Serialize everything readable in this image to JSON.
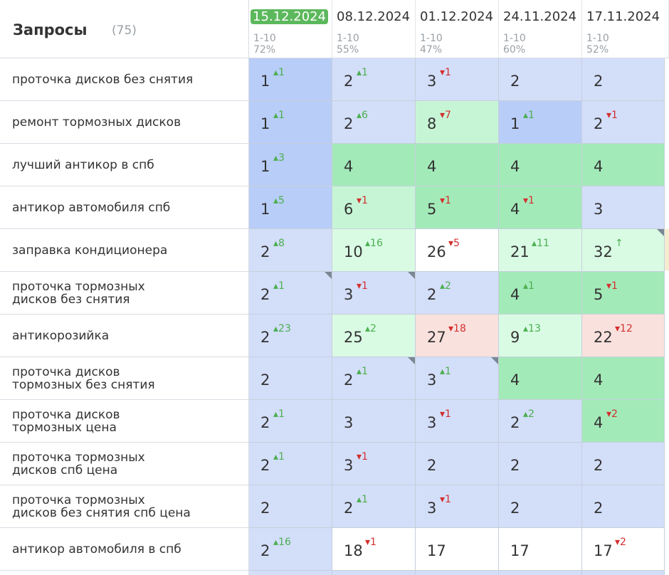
{
  "header": {
    "title": "Запросы",
    "count": "(75)"
  },
  "colors": {
    "active_date": "#5cb85c",
    "up": "#4caf50",
    "down": "#d32f2f"
  },
  "dates": [
    {
      "date": "15.12.2024",
      "range": "1-10",
      "percent": "72%",
      "active": true
    },
    {
      "date": "08.12.2024",
      "range": "1-10",
      "percent": "55%",
      "active": false
    },
    {
      "date": "01.12.2024",
      "range": "1-10",
      "percent": "47%",
      "active": false
    },
    {
      "date": "24.11.2024",
      "range": "1-10",
      "percent": "60%",
      "active": false
    },
    {
      "date": "17.11.2024",
      "range": "1-10",
      "percent": "52%",
      "active": false
    }
  ],
  "rows": [
    {
      "query": "проточка дисков без снятия",
      "cells": [
        {
          "pos": "1",
          "change": "1",
          "dir": "up",
          "color": "blue1"
        },
        {
          "pos": "2",
          "change": "1",
          "dir": "up",
          "color": "blue2"
        },
        {
          "pos": "3",
          "change": "1",
          "dir": "down",
          "color": "blue2"
        },
        {
          "pos": "2",
          "change": "",
          "dir": "",
          "color": "blue2"
        },
        {
          "pos": "2",
          "change": "",
          "dir": "",
          "color": "blue2"
        }
      ]
    },
    {
      "query": "ремонт тормозных дисков",
      "cells": [
        {
          "pos": "1",
          "change": "1",
          "dir": "up",
          "color": "blue1"
        },
        {
          "pos": "2",
          "change": "6",
          "dir": "up",
          "color": "blue2"
        },
        {
          "pos": "8",
          "change": "7",
          "dir": "down",
          "color": "green2"
        },
        {
          "pos": "1",
          "change": "1",
          "dir": "up",
          "color": "blue1"
        },
        {
          "pos": "2",
          "change": "1",
          "dir": "down",
          "color": "blue2"
        }
      ]
    },
    {
      "query": "лучший антикор в спб",
      "cells": [
        {
          "pos": "1",
          "change": "3",
          "dir": "up",
          "color": "blue1"
        },
        {
          "pos": "4",
          "change": "",
          "dir": "",
          "color": "green1"
        },
        {
          "pos": "4",
          "change": "",
          "dir": "",
          "color": "green1"
        },
        {
          "pos": "4",
          "change": "",
          "dir": "",
          "color": "green1"
        },
        {
          "pos": "4",
          "change": "",
          "dir": "",
          "color": "green1"
        }
      ]
    },
    {
      "query": "антикор автомобиля спб",
      "cells": [
        {
          "pos": "1",
          "change": "5",
          "dir": "up",
          "color": "blue1"
        },
        {
          "pos": "6",
          "change": "1",
          "dir": "down",
          "color": "green2"
        },
        {
          "pos": "5",
          "change": "1",
          "dir": "down",
          "color": "green1"
        },
        {
          "pos": "4",
          "change": "1",
          "dir": "down",
          "color": "green1"
        },
        {
          "pos": "3",
          "change": "",
          "dir": "",
          "color": "blue2"
        }
      ]
    },
    {
      "query": "заправка кондиционера",
      "cells": [
        {
          "pos": "2",
          "change": "8",
          "dir": "up",
          "color": "blue2"
        },
        {
          "pos": "10",
          "change": "16",
          "dir": "up",
          "color": "green3"
        },
        {
          "pos": "26",
          "change": "5",
          "dir": "down",
          "color": "white"
        },
        {
          "pos": "21",
          "change": "11",
          "dir": "up",
          "color": "green3"
        },
        {
          "pos": "32",
          "change": "↑",
          "dir": "arrow",
          "color": "green3",
          "flag": true
        }
      ]
    },
    {
      "query": "проточка тормозных\nдисков без снятия",
      "cells": [
        {
          "pos": "2",
          "change": "1",
          "dir": "up",
          "color": "blue2",
          "flag": true
        },
        {
          "pos": "3",
          "change": "1",
          "dir": "down",
          "color": "blue2",
          "flag": true
        },
        {
          "pos": "2",
          "change": "2",
          "dir": "up",
          "color": "blue2"
        },
        {
          "pos": "4",
          "change": "1",
          "dir": "up",
          "color": "green1"
        },
        {
          "pos": "5",
          "change": "1",
          "dir": "down",
          "color": "green1"
        }
      ]
    },
    {
      "query": "антикорозийка",
      "cells": [
        {
          "pos": "2",
          "change": "23",
          "dir": "up",
          "color": "blue2"
        },
        {
          "pos": "25",
          "change": "2",
          "dir": "up",
          "color": "green3"
        },
        {
          "pos": "27",
          "change": "18",
          "dir": "down",
          "color": "red"
        },
        {
          "pos": "9",
          "change": "13",
          "dir": "up",
          "color": "green3"
        },
        {
          "pos": "22",
          "change": "12",
          "dir": "down",
          "color": "red"
        }
      ]
    },
    {
      "query": "проточка дисков\nтормозных без снятия",
      "cells": [
        {
          "pos": "2",
          "change": "",
          "dir": "",
          "color": "blue2"
        },
        {
          "pos": "2",
          "change": "1",
          "dir": "up",
          "color": "blue2",
          "flag": true
        },
        {
          "pos": "3",
          "change": "1",
          "dir": "up",
          "color": "blue2",
          "flag": true
        },
        {
          "pos": "4",
          "change": "",
          "dir": "",
          "color": "green1"
        },
        {
          "pos": "4",
          "change": "",
          "dir": "",
          "color": "green1"
        }
      ]
    },
    {
      "query": "проточка дисков\nтормозных цена",
      "cells": [
        {
          "pos": "2",
          "change": "1",
          "dir": "up",
          "color": "blue2"
        },
        {
          "pos": "3",
          "change": "",
          "dir": "",
          "color": "blue2"
        },
        {
          "pos": "3",
          "change": "1",
          "dir": "down",
          "color": "blue2"
        },
        {
          "pos": "2",
          "change": "2",
          "dir": "up",
          "color": "blue2"
        },
        {
          "pos": "4",
          "change": "2",
          "dir": "down",
          "color": "green1"
        }
      ]
    },
    {
      "query": "проточка тормозных\nдисков спб цена",
      "cells": [
        {
          "pos": "2",
          "change": "1",
          "dir": "up",
          "color": "blue2"
        },
        {
          "pos": "3",
          "change": "1",
          "dir": "down",
          "color": "blue2"
        },
        {
          "pos": "2",
          "change": "",
          "dir": "",
          "color": "blue2"
        },
        {
          "pos": "2",
          "change": "",
          "dir": "",
          "color": "blue2"
        },
        {
          "pos": "2",
          "change": "",
          "dir": "",
          "color": "blue2"
        }
      ]
    },
    {
      "query": "проточка тормозных\nдисков без снятия спб цена",
      "cells": [
        {
          "pos": "2",
          "change": "",
          "dir": "",
          "color": "blue2"
        },
        {
          "pos": "2",
          "change": "1",
          "dir": "up",
          "color": "blue2"
        },
        {
          "pos": "3",
          "change": "1",
          "dir": "down",
          "color": "blue2"
        },
        {
          "pos": "2",
          "change": "",
          "dir": "",
          "color": "blue2"
        },
        {
          "pos": "2",
          "change": "",
          "dir": "",
          "color": "blue2"
        }
      ]
    },
    {
      "query": "антикор автомобиля в спб",
      "cells": [
        {
          "pos": "2",
          "change": "16",
          "dir": "up",
          "color": "blue2"
        },
        {
          "pos": "18",
          "change": "1",
          "dir": "down",
          "color": "white"
        },
        {
          "pos": "17",
          "change": "",
          "dir": "",
          "color": "white"
        },
        {
          "pos": "17",
          "change": "",
          "dir": "",
          "color": "white"
        },
        {
          "pos": "17",
          "change": "2",
          "dir": "down",
          "color": "white"
        }
      ]
    }
  ]
}
